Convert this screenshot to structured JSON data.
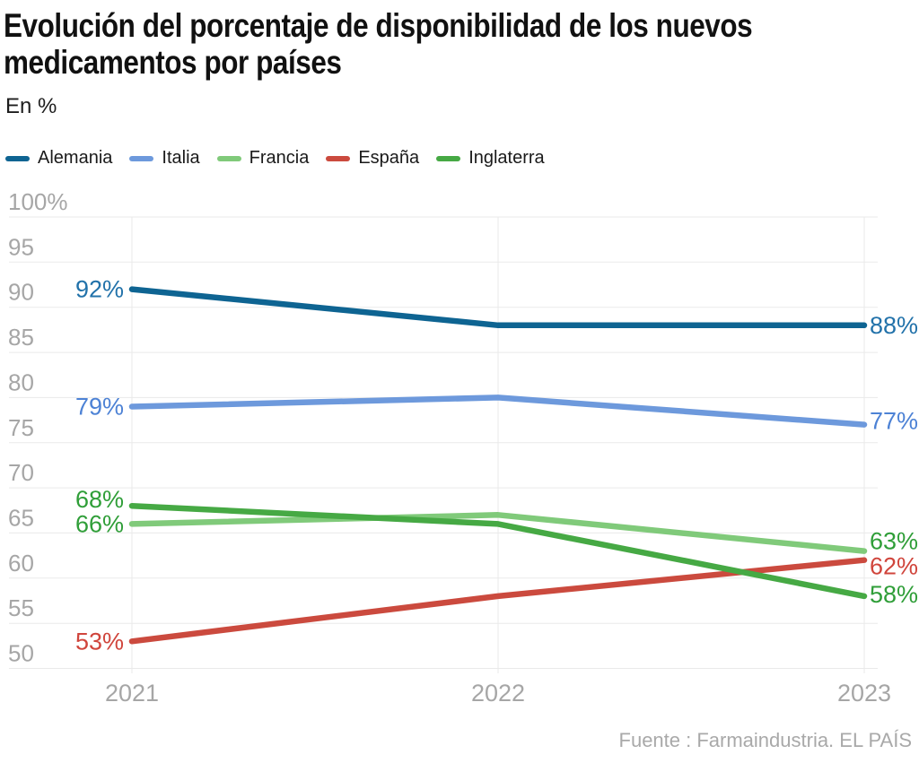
{
  "header": {
    "title_line1": "Evolución del porcentaje de disponibilidad de los nuevos",
    "title_line2": "medicamentos por países",
    "subtitle": "En %"
  },
  "footer": {
    "source": "Fuente : Farmaindustria. EL PAÍS"
  },
  "chart_data": {
    "type": "line",
    "title": "Evolución del porcentaje de disponibilidad de los nuevos medicamentos por países",
    "subtitle": "En %",
    "xlabel": "",
    "ylabel": "En %",
    "x": [
      "2021",
      "2022",
      "2023"
    ],
    "ylim": [
      50,
      100
    ],
    "ytick_step": 5,
    "yticks": [
      "100%",
      "95",
      "90",
      "85",
      "80",
      "75",
      "70",
      "65",
      "60",
      "55",
      "50"
    ],
    "grid": true,
    "legend_position": "top",
    "grid_color": "#eaeaea",
    "axis_label_color": "#a6a6a6",
    "series": [
      {
        "name": "Alemania",
        "color": "#0e6492",
        "label_color": "#2272aa",
        "values": [
          92,
          88,
          88
        ],
        "start_label": "92%",
        "end_label": "88%"
      },
      {
        "name": "Italia",
        "color": "#6d99dc",
        "label_color": "#4d82d5",
        "values": [
          79,
          80,
          77
        ],
        "start_label": "79%",
        "end_label": "77%"
      },
      {
        "name": "Francia",
        "color": "#80ca7a",
        "label_color": "#2f9e38",
        "values": [
          66,
          67,
          63
        ],
        "start_label": "66%",
        "end_label": "63%"
      },
      {
        "name": "España",
        "color": "#cb4a3e",
        "label_color": "#d0453c",
        "values": [
          53,
          58,
          62
        ],
        "start_label": "53%",
        "end_label": "62%"
      },
      {
        "name": "Inglaterra",
        "color": "#46a944",
        "label_color": "#2f9e38",
        "values": [
          68,
          66,
          58
        ],
        "start_label": "68%",
        "end_label": "58%"
      }
    ],
    "source": "Fuente : Farmaindustria. EL PAÍS"
  }
}
